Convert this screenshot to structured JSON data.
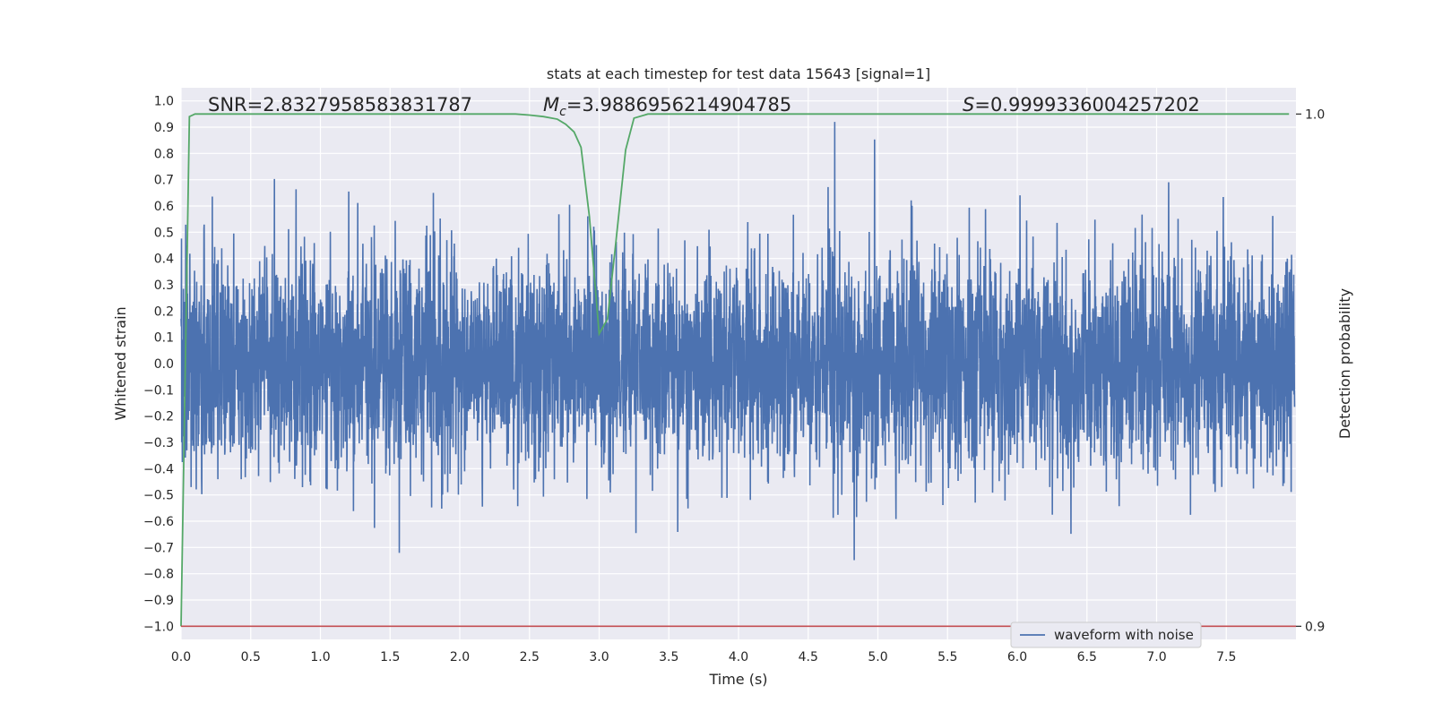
{
  "chart_data": {
    "type": "line",
    "title": "stats at each timestep for test data 15643 [signal=1]",
    "xlabel": "Time (s)",
    "ylabel": "Whitened strain",
    "y2label": "Detection probability",
    "xlim": [
      0,
      8
    ],
    "ylim": [
      -1.05,
      1.05
    ],
    "y2lim": [
      0.9,
      1.0
    ],
    "xticks": [
      "0.0",
      "0.5",
      "1.0",
      "1.5",
      "2.0",
      "2.5",
      "3.0",
      "3.5",
      "4.0",
      "4.5",
      "5.0",
      "5.5",
      "6.0",
      "6.5",
      "7.0",
      "7.5"
    ],
    "yticks": [
      "1.0",
      "0.9",
      "0.8",
      "0.7",
      "0.6",
      "0.5",
      "0.4",
      "0.3",
      "0.2",
      "0.1",
      "0.0",
      "-0.1",
      "-0.2",
      "-0.3",
      "-0.4",
      "-0.5",
      "-0.6",
      "-0.7",
      "-0.8",
      "-0.9",
      "-1.0"
    ],
    "y2ticks": [
      "1.0",
      "0.9"
    ],
    "grid": true,
    "legend_placement": "bottom-right",
    "annotations": {
      "snr": "SNR=2.8327958583831787",
      "mc_symbol": "M",
      "mc_sub": "c",
      "mc_value": "=3.9886956214904785",
      "s_symbol": "S",
      "s_value": "=0.9999336004257202"
    },
    "colors": {
      "waveform": "#4c72b0",
      "probability": "#55a868",
      "threshold": "#c44e52",
      "background": "#eaeaf2"
    },
    "series": [
      {
        "name": "waveform with noise",
        "style": "dense noise, amplitude roughly within ±0.5 with spikes to ±0.9",
        "noise_seed": 15643,
        "x_end": 7.99
      },
      {
        "axis": "y2",
        "points": [
          [
            0.0,
            0.9
          ],
          [
            0.06,
            0.9995
          ],
          [
            0.1,
            1.0
          ],
          [
            0.5,
            1.0
          ],
          [
            1.0,
            1.0
          ],
          [
            1.5,
            1.0
          ],
          [
            2.0,
            1.0
          ],
          [
            2.4,
            1.0
          ],
          [
            2.5,
            0.9998
          ],
          [
            2.6,
            0.9995
          ],
          [
            2.7,
            0.999
          ],
          [
            2.76,
            0.998
          ],
          [
            2.82,
            0.9965
          ],
          [
            2.87,
            0.9935
          ],
          [
            2.93,
            0.98
          ],
          [
            3.0,
            0.9571
          ],
          [
            3.06,
            0.96
          ],
          [
            3.12,
            0.975
          ],
          [
            3.19,
            0.993
          ],
          [
            3.25,
            0.9992
          ],
          [
            3.35,
            1.0
          ],
          [
            4.0,
            1.0
          ],
          [
            5.0,
            1.0
          ],
          [
            6.0,
            1.0
          ],
          [
            7.0,
            1.0
          ],
          [
            7.95,
            1.0
          ]
        ]
      },
      {
        "axis": "y",
        "style": "horizontal line",
        "y": -1.0
      }
    ]
  }
}
